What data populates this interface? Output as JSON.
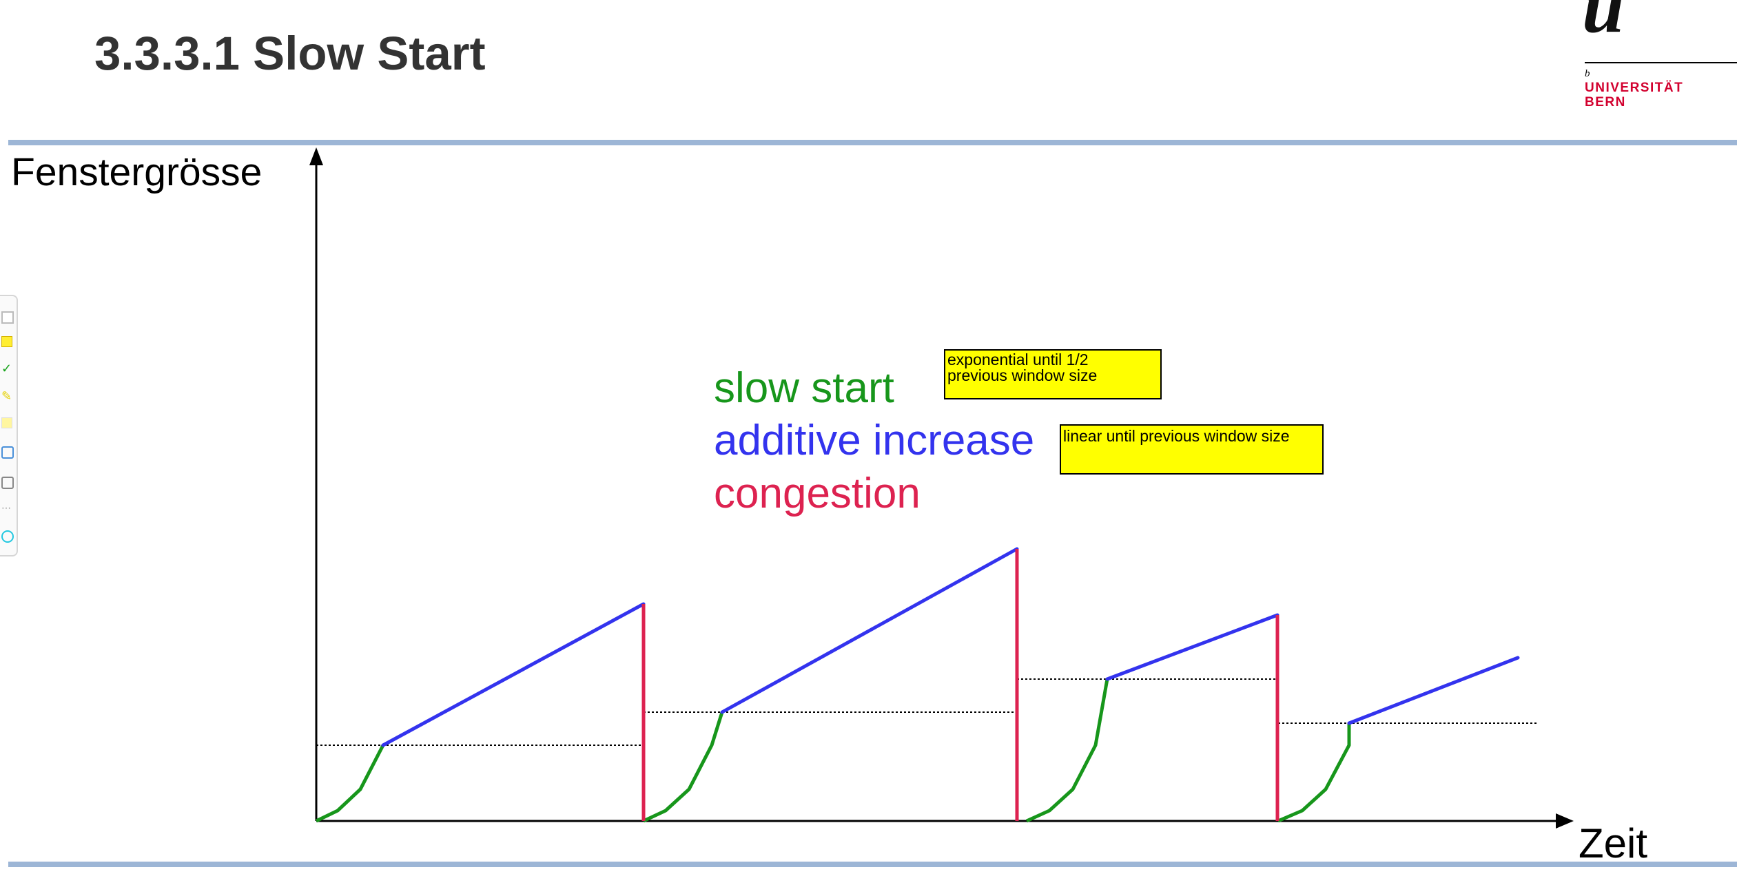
{
  "slide": {
    "title": "3.3.3.1 Slow Start"
  },
  "logo": {
    "mark": "u",
    "superscript": "b",
    "line1": "UNIVERSITÄT",
    "line2": "BERN",
    "color": "#d2002e"
  },
  "diagram": {
    "y_axis_label": "Fenstergrösse",
    "x_axis_label": "Zeit",
    "legend": {
      "slow_start": "slow start",
      "additive_increase": "additive increase",
      "congestion": "congestion"
    },
    "notes": {
      "slow_start": [
        "exponential until 1/2",
        "previous window size"
      ],
      "additive_increase": "linear until previous window size"
    },
    "colors": {
      "slow_start": "#17961b",
      "additive_increase": "#3333ee",
      "congestion": "#dd2250",
      "band": "#9db6d6",
      "note_fill": "#ffff00"
    }
  },
  "toolbar": {
    "icons": [
      "pointer-icon",
      "note-icon",
      "check-icon",
      "pen-icon",
      "highlighter-icon",
      "image-icon",
      "camera-icon",
      "more-icon",
      "link-icon"
    ]
  }
}
